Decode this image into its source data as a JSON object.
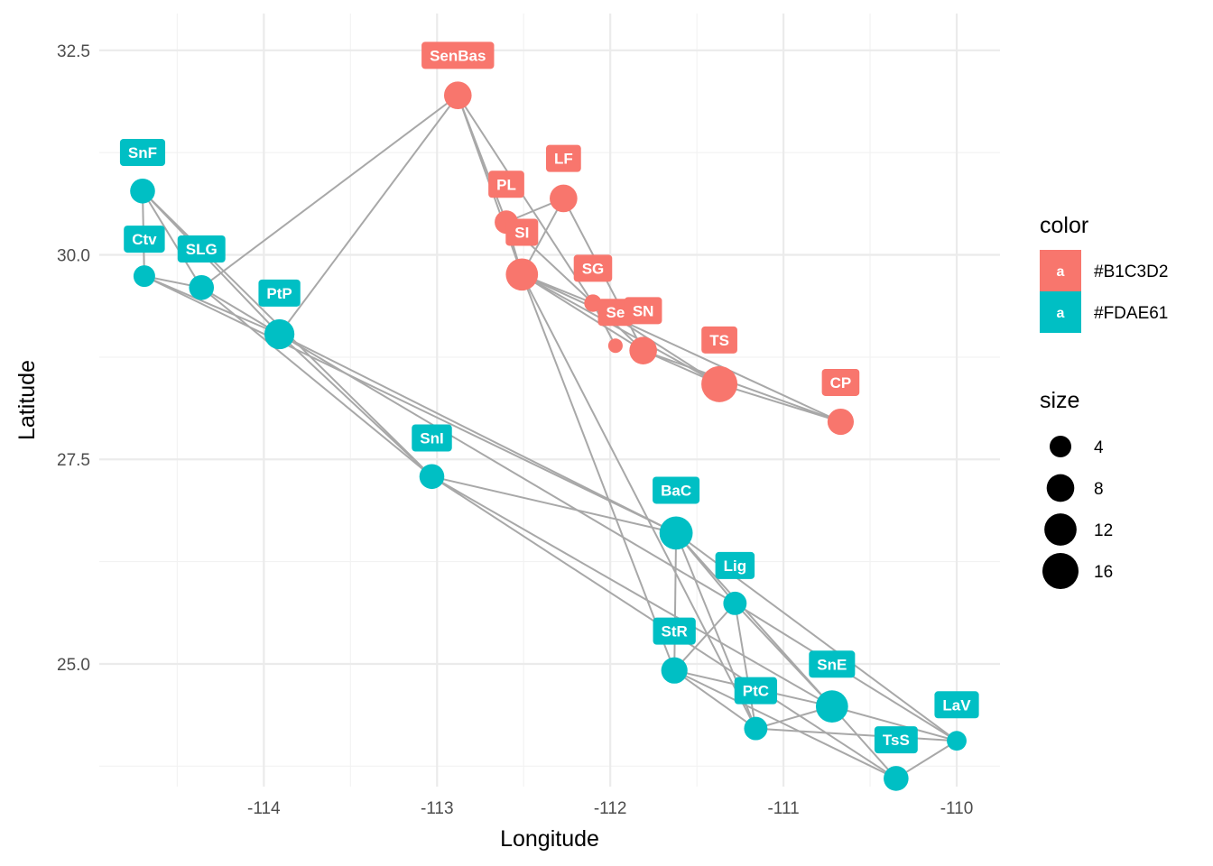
{
  "chart_data": {
    "type": "scatter",
    "subtype": "network",
    "title": "",
    "xlabel": "Longitude",
    "ylabel": "Latitude",
    "xlim": [
      -114.95,
      -109.75
    ],
    "ylim": [
      23.5,
      32.95
    ],
    "x_ticks": [
      -114,
      -113,
      -112,
      -111,
      -110
    ],
    "y_ticks": [
      25.0,
      27.5,
      30.0,
      32.5
    ],
    "x_tick_labels": [
      "-114",
      "-113",
      "-112",
      "-111",
      "-110"
    ],
    "y_tick_labels": [
      "25.0",
      "27.5",
      "30.0",
      "32.5"
    ],
    "grid": true,
    "legend_position": "right",
    "colors": {
      "#B1C3D2": "#f8766d",
      "#FDAE61": "#00bfc4"
    },
    "legend": {
      "color_title": "color",
      "color_entries": [
        {
          "key": "a",
          "label": "#B1C3D2",
          "fill": "#f8766d"
        },
        {
          "key": "a",
          "label": "#FDAE61",
          "fill": "#00bfc4"
        }
      ],
      "size_title": "size",
      "size_entries": [
        {
          "label": "4",
          "value": 4
        },
        {
          "label": "8",
          "value": 8
        },
        {
          "label": "12",
          "value": 12
        },
        {
          "label": "16",
          "value": 16
        }
      ]
    },
    "nodes": [
      {
        "id": "SenBas",
        "lon": -112.88,
        "lat": 31.95,
        "size": 8,
        "color": "#B1C3D2"
      },
      {
        "id": "PL",
        "lon": -112.6,
        "lat": 30.4,
        "size": 5,
        "color": "#B1C3D2"
      },
      {
        "id": "LF",
        "lon": -112.27,
        "lat": 30.69,
        "size": 8,
        "color": "#B1C3D2"
      },
      {
        "id": "SI",
        "lon": -112.51,
        "lat": 29.76,
        "size": 12,
        "color": "#B1C3D2"
      },
      {
        "id": "SG",
        "lon": -112.1,
        "lat": 29.41,
        "size": 2,
        "color": "#B1C3D2"
      },
      {
        "id": "Se",
        "lon": -111.97,
        "lat": 28.89,
        "size": 1,
        "color": "#B1C3D2"
      },
      {
        "id": "SN",
        "lon": -111.81,
        "lat": 28.83,
        "size": 8,
        "color": "#B1C3D2"
      },
      {
        "id": "TS",
        "lon": -111.37,
        "lat": 28.42,
        "size": 16,
        "color": "#B1C3D2"
      },
      {
        "id": "CP",
        "lon": -110.67,
        "lat": 27.96,
        "size": 7,
        "color": "#B1C3D2"
      },
      {
        "id": "SnF",
        "lon": -114.7,
        "lat": 30.78,
        "size": 6,
        "color": "#FDAE61"
      },
      {
        "id": "Ctv",
        "lon": -114.69,
        "lat": 29.74,
        "size": 4,
        "color": "#FDAE61"
      },
      {
        "id": "SLG",
        "lon": -114.36,
        "lat": 29.6,
        "size": 6,
        "color": "#FDAE61"
      },
      {
        "id": "PtP",
        "lon": -113.91,
        "lat": 29.03,
        "size": 10,
        "color": "#FDAE61"
      },
      {
        "id": "SnI",
        "lon": -113.03,
        "lat": 27.29,
        "size": 6,
        "color": "#FDAE61"
      },
      {
        "id": "BaC",
        "lon": -111.62,
        "lat": 26.6,
        "size": 13,
        "color": "#FDAE61"
      },
      {
        "id": "Lig",
        "lon": -111.28,
        "lat": 25.74,
        "size": 5,
        "color": "#FDAE61"
      },
      {
        "id": "StR",
        "lon": -111.63,
        "lat": 24.92,
        "size": 7,
        "color": "#FDAE61"
      },
      {
        "id": "PtC",
        "lon": -111.16,
        "lat": 24.21,
        "size": 5,
        "color": "#FDAE61"
      },
      {
        "id": "SnE",
        "lon": -110.72,
        "lat": 24.48,
        "size": 12,
        "color": "#FDAE61"
      },
      {
        "id": "TsS",
        "lon": -110.35,
        "lat": 23.6,
        "size": 6,
        "color": "#FDAE61"
      },
      {
        "id": "LaV",
        "lon": -110.0,
        "lat": 24.06,
        "size": 3,
        "color": "#FDAE61"
      }
    ],
    "edges": [
      [
        "SenBas",
        "PL"
      ],
      [
        "SenBas",
        "SI"
      ],
      [
        "SenBas",
        "SG"
      ],
      [
        "SenBas",
        "SLG"
      ],
      [
        "SenBas",
        "PtP"
      ],
      [
        "PL",
        "LF"
      ],
      [
        "PL",
        "SI"
      ],
      [
        "PL",
        "SG"
      ],
      [
        "LF",
        "SI"
      ],
      [
        "LF",
        "SN"
      ],
      [
        "SI",
        "SG"
      ],
      [
        "SI",
        "SN"
      ],
      [
        "SI",
        "TS"
      ],
      [
        "SI",
        "CP"
      ],
      [
        "SI",
        "StR"
      ],
      [
        "SI",
        "PtC"
      ],
      [
        "SG",
        "Se"
      ],
      [
        "SG",
        "SN"
      ],
      [
        "SG",
        "TS"
      ],
      [
        "SN",
        "TS"
      ],
      [
        "SN",
        "CP"
      ],
      [
        "TS",
        "CP"
      ],
      [
        "SnF",
        "Ctv"
      ],
      [
        "SnF",
        "SLG"
      ],
      [
        "SnF",
        "PtP"
      ],
      [
        "SnF",
        "SnI"
      ],
      [
        "Ctv",
        "SLG"
      ],
      [
        "Ctv",
        "PtP"
      ],
      [
        "Ctv",
        "BaC"
      ],
      [
        "SLG",
        "PtP"
      ],
      [
        "SLG",
        "SnI"
      ],
      [
        "PtP",
        "SnI"
      ],
      [
        "PtP",
        "BaC"
      ],
      [
        "PtP",
        "Lig"
      ],
      [
        "SnI",
        "BaC"
      ],
      [
        "SnI",
        "SnE"
      ],
      [
        "SnI",
        "TsS"
      ],
      [
        "BaC",
        "Lig"
      ],
      [
        "BaC",
        "StR"
      ],
      [
        "BaC",
        "PtC"
      ],
      [
        "BaC",
        "SnE"
      ],
      [
        "BaC",
        "LaV"
      ],
      [
        "Lig",
        "StR"
      ],
      [
        "Lig",
        "PtC"
      ],
      [
        "Lig",
        "SnE"
      ],
      [
        "Lig",
        "LaV"
      ],
      [
        "StR",
        "PtC"
      ],
      [
        "StR",
        "SnE"
      ],
      [
        "StR",
        "TsS"
      ],
      [
        "PtC",
        "SnE"
      ],
      [
        "PtC",
        "LaV"
      ],
      [
        "SnE",
        "TsS"
      ],
      [
        "SnE",
        "LaV"
      ],
      [
        "TsS",
        "LaV"
      ]
    ]
  }
}
